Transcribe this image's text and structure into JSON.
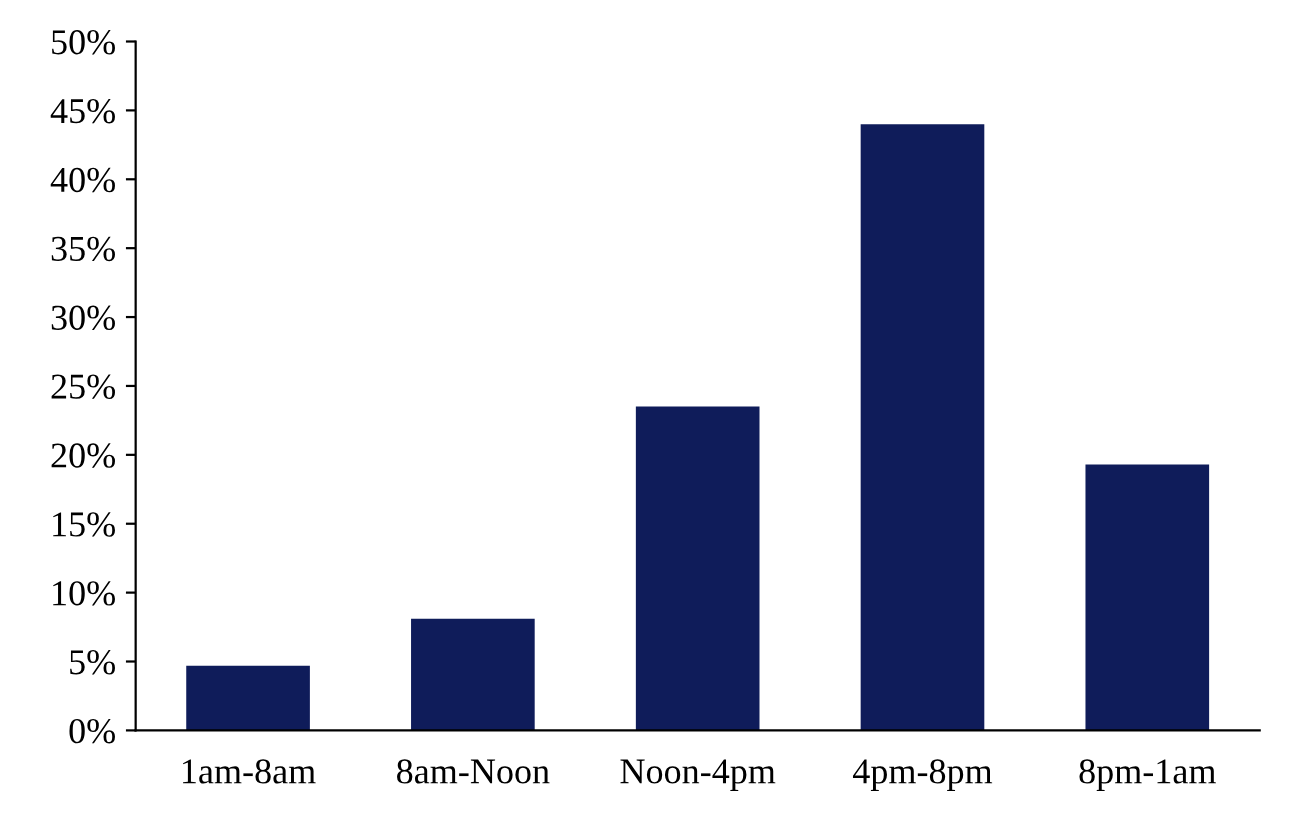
{
  "chart_data": {
    "type": "bar",
    "categories": [
      "1am-8am",
      "8am-Noon",
      "Noon-4pm",
      "4pm-8pm",
      "8pm-1am"
    ],
    "values": [
      4.7,
      8.1,
      23.5,
      44,
      19.3
    ],
    "color": "#0f1c5a",
    "ylim": [
      0,
      50
    ],
    "yticks": [
      {
        "value": 0,
        "label": "0%"
      },
      {
        "value": 5,
        "label": "5%"
      },
      {
        "value": 10,
        "label": "10%"
      },
      {
        "value": 15,
        "label": "15%"
      },
      {
        "value": 20,
        "label": "20%"
      },
      {
        "value": 25,
        "label": "25%"
      },
      {
        "value": 30,
        "label": "30%"
      },
      {
        "value": 35,
        "label": "35%"
      },
      {
        "value": 40,
        "label": "40%"
      },
      {
        "value": 45,
        "label": "45%"
      },
      {
        "value": 50,
        "label": "50%"
      }
    ],
    "grid": false,
    "legend": false
  }
}
